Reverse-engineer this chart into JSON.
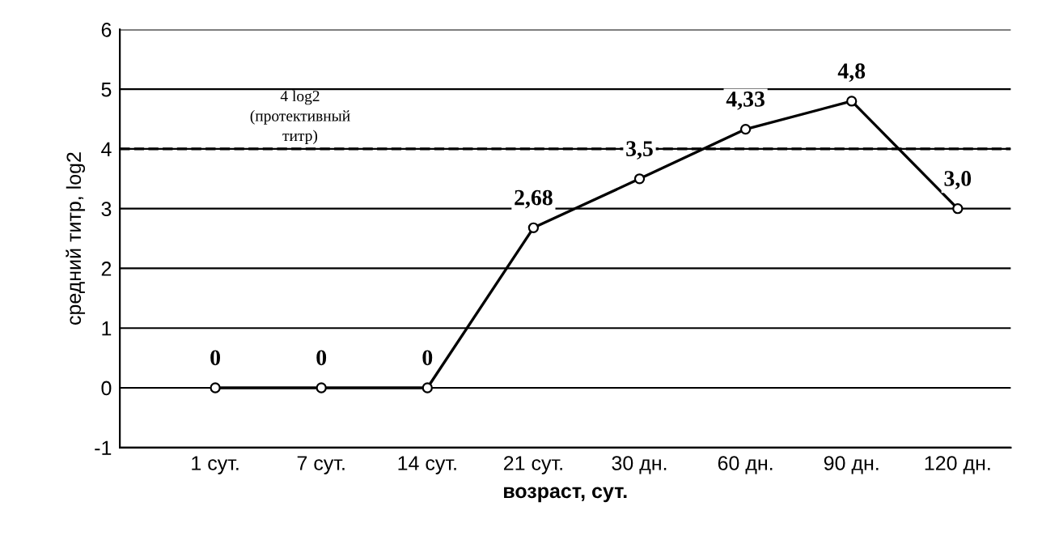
{
  "chart_data": {
    "type": "line",
    "categories": [
      "1 сут.",
      "7 сут.",
      "14 сут.",
      "21 сут.",
      "30 дн.",
      "60 дн.",
      "90 дн.",
      "120 дн."
    ],
    "series": [
      {
        "color": "#000000",
        "values": [
          0,
          0,
          0,
          2.68,
          3.5,
          4.33,
          4.8,
          3.0
        ],
        "value_labels": [
          "0",
          "0",
          "0",
          "2,68",
          "3,5",
          "4,33",
          "4,8",
          "3,0"
        ]
      }
    ],
    "xlabel": "возраст, сут.",
    "ylabel": "средний титр, log2",
    "ylim": [
      -1,
      6
    ],
    "yticks": [
      -1,
      0,
      1,
      2,
      3,
      4,
      5,
      6
    ],
    "ref_lines": [
      {
        "axis": "y",
        "value": 4,
        "label": "4 log2\n(протективный\nтитр)",
        "line_style": "dashed",
        "color": "#000000"
      }
    ],
    "grid": "y",
    "marker": "circle",
    "line_style": "solid",
    "legend": false
  }
}
